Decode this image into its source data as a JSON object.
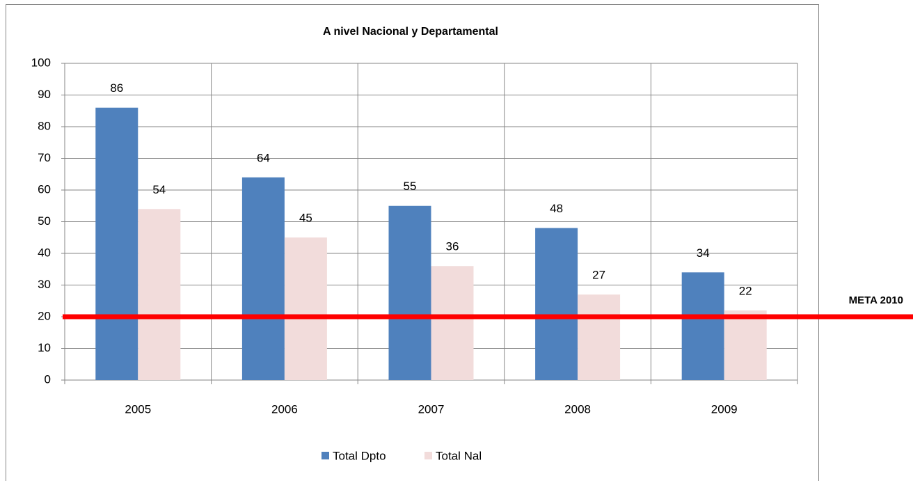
{
  "chart_data": {
    "type": "bar",
    "title": "A nivel Nacional y Departamental",
    "categories": [
      "2005",
      "2006",
      "2007",
      "2008",
      "2009"
    ],
    "series": [
      {
        "name": "Total Dpto",
        "color": "#4f81bd",
        "values": [
          86,
          64,
          55,
          48,
          34
        ]
      },
      {
        "name": "Total Nal",
        "color": "#f2dcdb",
        "values": [
          54,
          45,
          36,
          27,
          22
        ]
      }
    ],
    "ylim": [
      0,
      100
    ],
    "yticks": [
      0,
      10,
      20,
      30,
      40,
      50,
      60,
      70,
      80,
      90,
      100
    ],
    "grid": true,
    "legend": "bottom",
    "reference_line": {
      "value": 20,
      "label": "META 2010",
      "color": "#ff0000"
    }
  }
}
